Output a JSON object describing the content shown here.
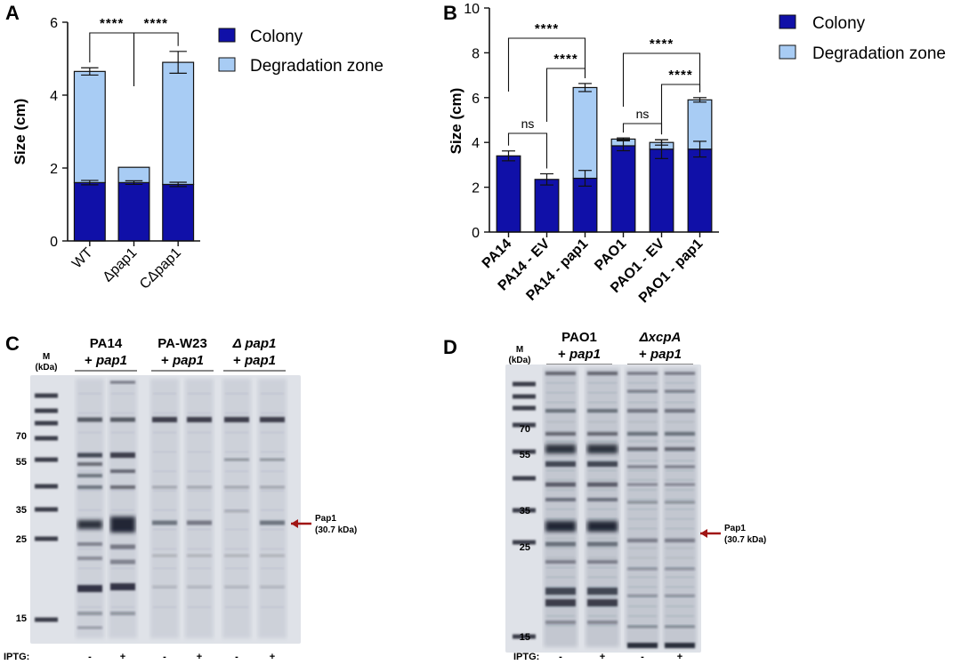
{
  "panels": {
    "a": "A",
    "b": "B",
    "c": "C",
    "d": "D"
  },
  "chart_data": [
    {
      "panel": "A",
      "type": "bar",
      "stacked": true,
      "categories": [
        "WT",
        "Δpap1",
        "CΔpap1"
      ],
      "series": [
        {
          "name": "Colony",
          "values": [
            1.6,
            1.6,
            1.55
          ],
          "errors": [
            0.06,
            0.05,
            0.06
          ],
          "color": "#1010a8"
        },
        {
          "name": "Degradation zone",
          "values": [
            3.05,
            0.42,
            3.35
          ],
          "errors": [
            0.1,
            0.0,
            0.3
          ],
          "color": "#a8ccf4"
        }
      ],
      "ylabel": "Size (cm)",
      "ylim": [
        0,
        6
      ],
      "yticks": [
        0,
        2,
        4,
        6
      ],
      "legend": "top-right",
      "significance": [
        {
          "from": 0,
          "to": 1,
          "label": "****"
        },
        {
          "from": 1,
          "to": 2,
          "label": "****"
        }
      ]
    },
    {
      "panel": "B",
      "type": "bar",
      "stacked": true,
      "categories": [
        "PA14",
        "PA14 - EV",
        "PA14 - pap1",
        "PAO1",
        "PAO1 - EV",
        "PAO1 - pap1"
      ],
      "series": [
        {
          "name": "Colony",
          "values": [
            3.4,
            2.35,
            2.4,
            3.85,
            3.7,
            3.7
          ],
          "errors": [
            0.22,
            0.25,
            0.35,
            0.22,
            0.42,
            0.35
          ],
          "color": "#1010a8"
        },
        {
          "name": "Degradation zone",
          "values": [
            0,
            0,
            4.05,
            0.3,
            0.3,
            2.2
          ],
          "errors": [
            0,
            0,
            0.18,
            0.05,
            0.12,
            0.1
          ],
          "color": "#a8ccf4"
        }
      ],
      "ylabel": "Size (cm)",
      "ylim": [
        0,
        10
      ],
      "yticks": [
        0,
        2,
        4,
        6,
        8,
        10
      ],
      "legend": "top-right",
      "significance": [
        {
          "from": 0,
          "to": 1,
          "label": "ns"
        },
        {
          "from": 1,
          "to": 2,
          "label": "****"
        },
        {
          "from": 0,
          "to": 2,
          "label": "****"
        },
        {
          "from": 3,
          "to": 4,
          "label": "ns"
        },
        {
          "from": 4,
          "to": 5,
          "label": "****"
        },
        {
          "from": 3,
          "to": 5,
          "label": "****"
        }
      ]
    }
  ],
  "gels": [
    {
      "panel": "C",
      "marker_header": [
        "M",
        "(kDa)"
      ],
      "marker_labels": [
        "70",
        "55",
        "35",
        "25",
        "15"
      ],
      "marker_kda": [
        70,
        55,
        35,
        25,
        15
      ],
      "groups": [
        {
          "name": "PA14",
          "sub_prefix": "+ ",
          "sub": "pap1",
          "name_italic": false
        },
        {
          "name": "PA-W23",
          "sub_prefix": "+ ",
          "sub": "pap1",
          "name_italic": false
        },
        {
          "name": "Δ pap1",
          "sub_prefix": "+ ",
          "sub": "pap1",
          "name_italic": true
        }
      ],
      "annotation": [
        "Pap1",
        "(30.7 kDa)"
      ],
      "iptg_label": "IPTG:",
      "iptg": [
        "-",
        "+",
        "-",
        "+",
        "-",
        "+"
      ]
    },
    {
      "panel": "D",
      "marker_header": [
        "M",
        "(kDa)"
      ],
      "marker_labels": [
        "70",
        "55",
        "35",
        "25",
        "15"
      ],
      "marker_kda": [
        70,
        55,
        35,
        25,
        15
      ],
      "groups": [
        {
          "name": "PAO1",
          "sub_prefix": "+ ",
          "sub": "pap1",
          "name_italic": false
        },
        {
          "name": "ΔxcpA",
          "sub_prefix": "+ ",
          "sub": "pap1",
          "name_italic": true
        }
      ],
      "annotation": [
        "Pap1",
        "(30.7 kDa)"
      ],
      "iptg_label": "IPTG:",
      "iptg": [
        "-",
        "+",
        "-",
        "+"
      ]
    }
  ]
}
